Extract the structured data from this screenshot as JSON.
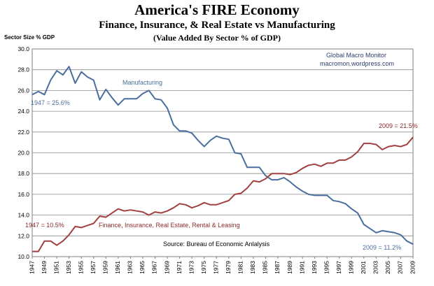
{
  "chart_data": {
    "type": "line",
    "title": "America's FIRE Economy",
    "subtitle": "Finance, Insurance, & Real Estate vs Manufacturing",
    "subtitle2": "(Value Added By Sector % of GDP)",
    "ylabel": "Sector Size % GDP",
    "ylim": [
      10,
      30
    ],
    "yticks": [
      "10.0",
      "12.0",
      "14.0",
      "16.0",
      "18.0",
      "20.0",
      "22.0",
      "24.0",
      "26.0",
      "28.0",
      "30.0"
    ],
    "grid": true,
    "x": [
      1947,
      1948,
      1949,
      1950,
      1951,
      1952,
      1953,
      1954,
      1955,
      1956,
      1957,
      1958,
      1959,
      1960,
      1961,
      1962,
      1963,
      1964,
      1965,
      1966,
      1967,
      1968,
      1969,
      1970,
      1971,
      1972,
      1973,
      1974,
      1975,
      1976,
      1977,
      1978,
      1979,
      1980,
      1981,
      1982,
      1983,
      1984,
      1985,
      1986,
      1987,
      1988,
      1989,
      1990,
      1991,
      1992,
      1993,
      1994,
      1995,
      1996,
      1997,
      1998,
      1999,
      2000,
      2001,
      2002,
      2003,
      2004,
      2005,
      2006,
      2007,
      2008,
      2009
    ],
    "xticks": [
      "1947",
      "1949",
      "1951",
      "1953",
      "1955",
      "1957",
      "1959",
      "1961",
      "1963",
      "1965",
      "1967",
      "1969",
      "1971",
      "1973",
      "1975",
      "1977",
      "1979",
      "1981",
      "1983",
      "1985",
      "1987",
      "1989",
      "1991",
      "1993",
      "1995",
      "1997",
      "1999",
      "2001",
      "2003",
      "2005",
      "2007",
      "2009"
    ],
    "series": [
      {
        "name": "Manufacturing",
        "color": "#4a6f9e",
        "values": [
          25.6,
          25.9,
          25.6,
          27.0,
          27.9,
          27.5,
          28.3,
          26.7,
          27.8,
          27.3,
          27.0,
          25.1,
          26.1,
          25.3,
          24.6,
          25.2,
          25.2,
          25.2,
          25.7,
          26.0,
          25.2,
          25.1,
          24.3,
          22.7,
          22.1,
          22.1,
          21.9,
          21.2,
          20.6,
          21.2,
          21.6,
          21.4,
          21.3,
          20.0,
          19.9,
          18.6,
          18.6,
          18.6,
          17.8,
          17.4,
          17.4,
          17.6,
          17.2,
          16.7,
          16.3,
          16.0,
          15.9,
          15.9,
          15.9,
          15.4,
          15.3,
          15.1,
          14.6,
          14.2,
          13.1,
          12.7,
          12.3,
          12.5,
          12.4,
          12.3,
          12.1,
          11.5,
          11.2
        ]
      },
      {
        "name": "Finance, Insurance, Real Estate, Rental & Leasing",
        "color": "#a04040",
        "values": [
          10.5,
          10.5,
          11.5,
          11.5,
          11.1,
          11.5,
          12.1,
          12.9,
          12.8,
          13.0,
          13.2,
          13.9,
          13.8,
          14.2,
          14.6,
          14.4,
          14.5,
          14.4,
          14.3,
          14.0,
          14.3,
          14.2,
          14.4,
          14.7,
          15.1,
          15.0,
          14.7,
          14.9,
          15.2,
          15.0,
          15.0,
          15.2,
          15.4,
          16.0,
          16.1,
          16.6,
          17.3,
          17.2,
          17.5,
          18.0,
          18.0,
          18.0,
          17.9,
          18.1,
          18.5,
          18.8,
          18.9,
          18.7,
          19.0,
          19.0,
          19.3,
          19.3,
          19.6,
          20.1,
          20.9,
          20.9,
          20.8,
          20.3,
          20.6,
          20.7,
          20.6,
          20.8,
          21.5
        ]
      }
    ],
    "annotations": {
      "source_top": "Global Macro Monitor",
      "source_url": "macromon.wordpress.com",
      "mfg_label": "Manufacturing",
      "mfg_start": "1947 = 25.6%",
      "mfg_end": "2009 = 11.2%",
      "fire_label": "Finance, Insurance, Real Estate, Rental & Leasing",
      "fire_start": "1947 = 10.5%",
      "fire_end": "2009 = 21.5%",
      "source": "Source:  Bureau of Economic Anlalysis"
    }
  }
}
